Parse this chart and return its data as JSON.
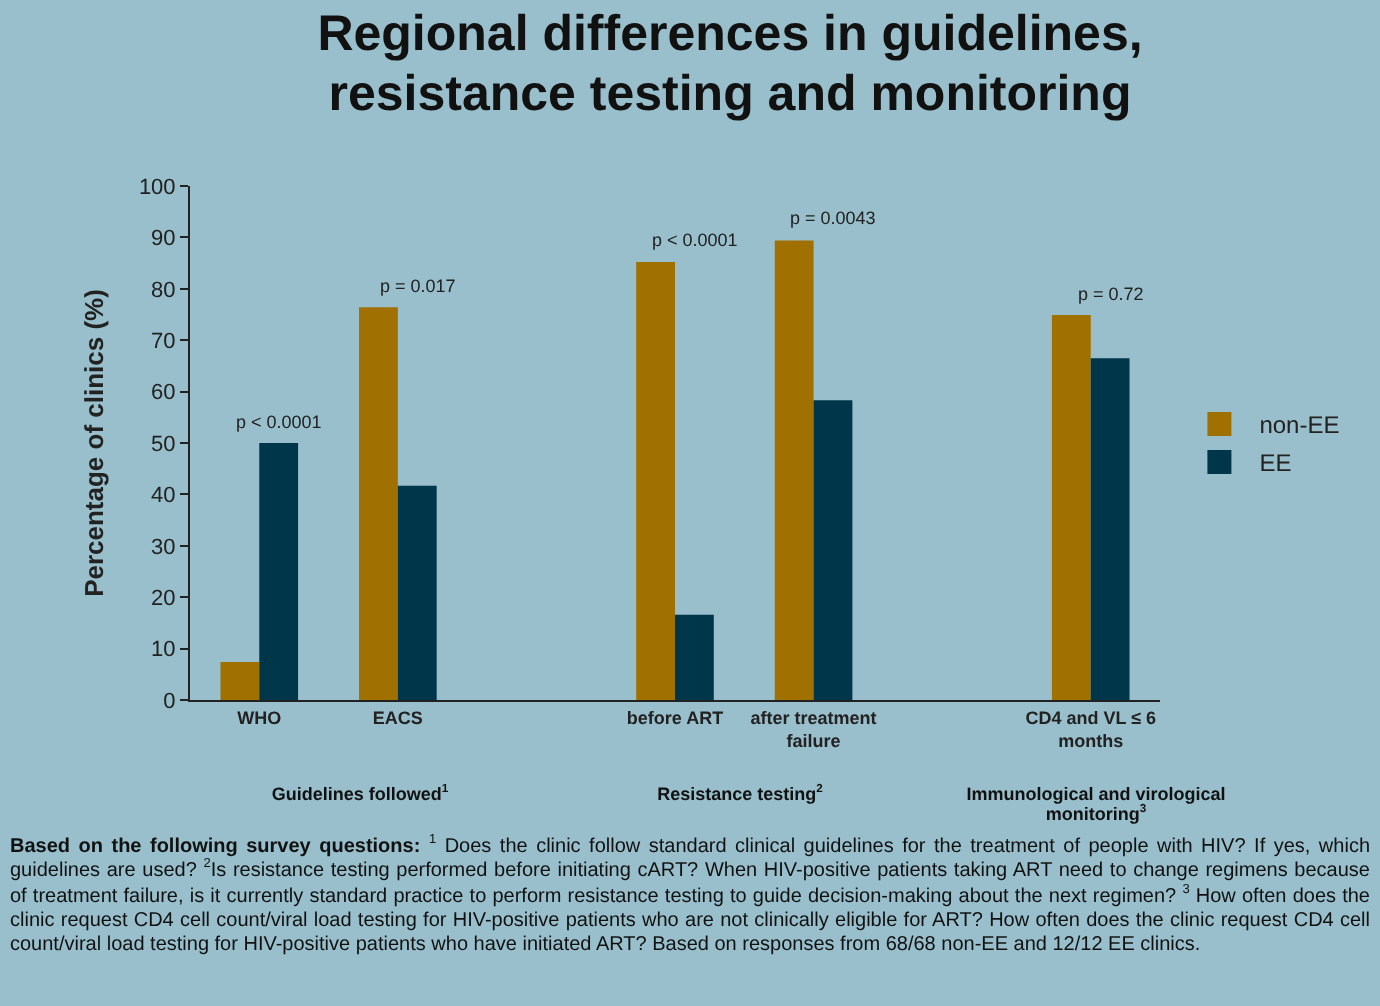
{
  "chart_data": {
    "type": "bar",
    "title": "Regional differences in guidelines, resistance testing and monitoring",
    "ylabel": "Percentage of clinics (%)",
    "categories": [
      "WHO",
      "EACS",
      null,
      "before ART",
      "after treatment failure",
      null,
      "CD4 and VL ≤ 6 months"
    ],
    "series": [
      {
        "name": "non-EE",
        "color": "#a07000",
        "values": [
          7.4,
          76.4,
          null,
          85.2,
          89.4,
          null,
          74.9
        ]
      },
      {
        "name": "EE",
        "color": "#00364a",
        "values": [
          50,
          41.7,
          null,
          16.6,
          58.3,
          null,
          66.5
        ]
      }
    ],
    "ylim": [
      0,
      100
    ],
    "yticks": [
      0,
      10,
      20,
      30,
      40,
      50,
      60,
      70,
      80,
      90,
      100
    ],
    "grid": false,
    "legend": "right",
    "annotations": [
      {
        "text": "p < 0.0001",
        "x": "WHO",
        "y": 50
      },
      {
        "text": "p = 0.017",
        "x": "EACS",
        "y": 76.4
      },
      {
        "text": "p < 0.0001",
        "x": "before ART",
        "y": 85.2
      },
      {
        "text": "p = 0.0043",
        "x": "after treatment failure",
        "y": 89.4
      },
      {
        "text": "p = 0.72",
        "x": "CD4 and VL ≤ 6 months",
        "y": 74.9
      },
      "Guidelines followed$^{1}$",
      "Resistance testing$^{2}$",
      "Immunological and virological monitoring$^{3}$",
      "Based on the following survey questions:",
      "$^{1}$ Does the clinic follow standard clinical guidelines for the treatment of people with HIV? If yes, which guidelines are used? $^{2}$Is resistance testing performed before initiating cART? When HIV-positive patients taking ART need to change regimens because of treatment failure, is it currently standard practice to perform resistance testing to guide decision-making about the next regimen? $^{3}$ How often does the clinic request CD4 cell count/viral load testing for HIV-positive patients who are not clinically eligible for ART? How often does the clinic request CD4 cell count/viral load testing for HIV-positive patients who have initiated ART? Based on responses from 68/68 non-EE and 12/12 EE clinics."
    ]
  }
}
